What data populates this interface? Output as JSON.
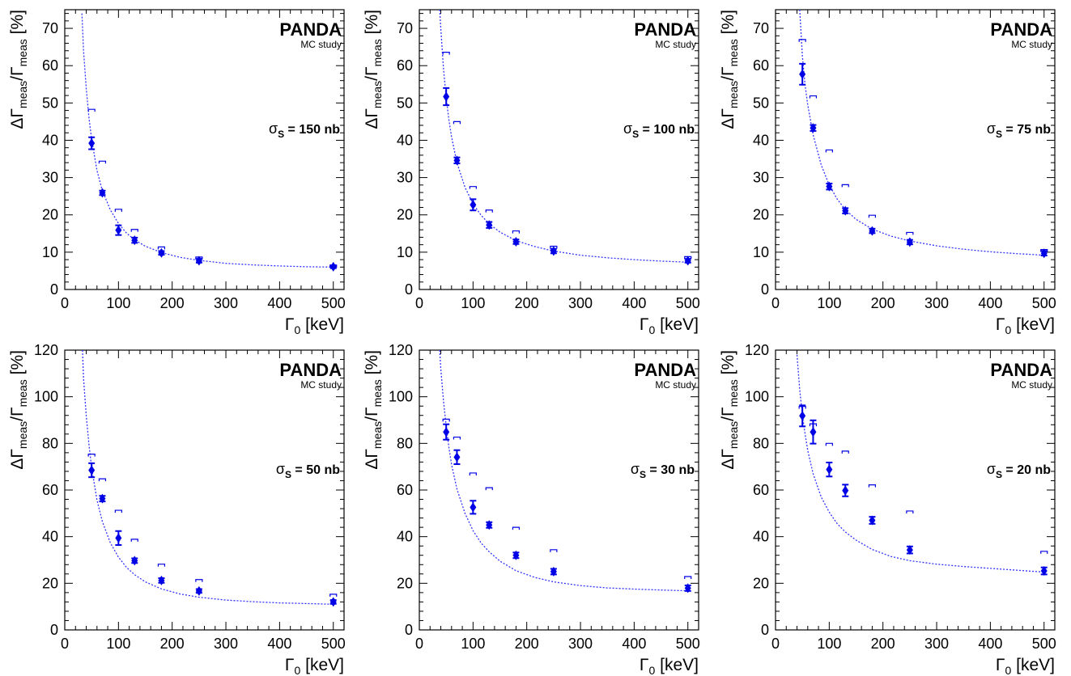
{
  "chart_data": [
    {
      "type": "scatter",
      "xlabel": "Γ0 [keV]",
      "ylabel": "ΔΓmeas/Γmeas [%]",
      "xlim": [
        0,
        520
      ],
      "ylim": [
        0,
        75
      ],
      "xticks": [
        0,
        100,
        200,
        300,
        400,
        500
      ],
      "yticks": [
        0,
        10,
        20,
        30,
        40,
        50,
        60,
        70
      ],
      "brand": "PANDA",
      "subtitle": "MC study",
      "sigma_value": "150",
      "series": [
        {
          "marker": "diamond",
          "points": [
            [
              50,
              39.2,
              1.6
            ],
            [
              70,
              25.9,
              0.6
            ],
            [
              100,
              15.9,
              1.3
            ],
            [
              130,
              13.2,
              0.7
            ],
            [
              180,
              9.8,
              0.5
            ],
            [
              250,
              7.7,
              0.5
            ],
            [
              500,
              6.1,
              0.4
            ]
          ]
        },
        {
          "marker": "bracket",
          "x": [
            50,
            70,
            100,
            130,
            180,
            250,
            500
          ],
          "y": [
            48.3,
            34.4,
            21.5,
            16.1,
            11.4,
            8.7,
            6.5
          ]
        }
      ],
      "fit_curve": {
        "x": [
          32,
          35,
          40,
          45,
          50,
          60,
          70,
          85,
          100,
          115,
          130,
          150,
          180,
          215,
          250,
          300,
          350,
          400,
          450,
          500
        ],
        "y": [
          74,
          64,
          54,
          46,
          40.3,
          31.9,
          26.5,
          21.3,
          17.7,
          15.1,
          13.3,
          11.6,
          9.9,
          8.6,
          7.8,
          7.0,
          6.6,
          6.3,
          6.1,
          6.0
        ]
      }
    },
    {
      "type": "scatter",
      "xlabel": "Γ0 [keV]",
      "ylabel": "ΔΓmeas/Γmeas [%]",
      "xlim": [
        0,
        520
      ],
      "ylim": [
        0,
        75
      ],
      "xticks": [
        0,
        100,
        200,
        300,
        400,
        500
      ],
      "yticks": [
        0,
        10,
        20,
        30,
        40,
        50,
        60,
        70
      ],
      "brand": "PANDA",
      "subtitle": "MC study",
      "sigma_value": "100",
      "series": [
        {
          "marker": "diamond",
          "points": [
            [
              50,
              51.7,
              2.3
            ],
            [
              70,
              34.6,
              0.8
            ],
            [
              100,
              22.7,
              1.5
            ],
            [
              130,
              17.3,
              0.8
            ],
            [
              180,
              12.8,
              0.6
            ],
            [
              250,
              10.3,
              0.6
            ],
            [
              500,
              7.7,
              0.5
            ]
          ]
        },
        {
          "marker": "bracket",
          "x": [
            50,
            70,
            100,
            130,
            180,
            250,
            500
          ],
          "y": [
            63.6,
            45.0,
            27.6,
            21.3,
            15.7,
            11.6,
            8.8
          ]
        }
      ],
      "fit_curve": {
        "x": [
          38,
          40,
          45,
          50,
          55,
          60,
          70,
          85,
          100,
          115,
          130,
          150,
          180,
          215,
          250,
          300,
          350,
          400,
          450,
          500
        ],
        "y": [
          75,
          70,
          59,
          51.4,
          45.5,
          40.9,
          34,
          27.4,
          23,
          19.9,
          17.6,
          15.4,
          13.1,
          11.5,
          10.3,
          9.2,
          8.5,
          8.0,
          7.6,
          7.3
        ]
      }
    },
    {
      "type": "scatter",
      "xlabel": "Γ0 [keV]",
      "ylabel": "ΔΓmeas/Γmeas [%]",
      "xlim": [
        0,
        520
      ],
      "ylim": [
        0,
        75
      ],
      "xticks": [
        0,
        100,
        200,
        300,
        400,
        500
      ],
      "yticks": [
        0,
        10,
        20,
        30,
        40,
        50,
        60,
        70
      ],
      "brand": "PANDA",
      "subtitle": "MC study",
      "sigma_value": "75",
      "series": [
        {
          "marker": "diamond",
          "points": [
            [
              50,
              57.7,
              2.8
            ],
            [
              70,
              43.3,
              0.8
            ],
            [
              100,
              27.6,
              0.8
            ],
            [
              130,
              21.1,
              0.7
            ],
            [
              180,
              15.7,
              0.6
            ],
            [
              250,
              12.7,
              0.6
            ],
            [
              500,
              9.7,
              0.6
            ]
          ]
        },
        {
          "marker": "bracket",
          "x": [
            50,
            70,
            100,
            130,
            180,
            250,
            500
          ],
          "y": [
            67.0,
            51.9,
            37.4,
            28.1,
            19.9,
            15.3,
            10.7
          ]
        }
      ],
      "fit_curve": {
        "x": [
          45,
          50,
          55,
          60,
          70,
          85,
          100,
          115,
          130,
          150,
          180,
          215,
          250,
          300,
          350,
          400,
          450,
          500
        ],
        "y": [
          75,
          62.5,
          54.8,
          49.5,
          41.5,
          33.4,
          28,
          24.2,
          21.4,
          18.8,
          16.2,
          14.3,
          13,
          11.7,
          10.8,
          10.1,
          9.6,
          9.2
        ]
      }
    },
    {
      "type": "scatter",
      "xlabel": "Γ0 [keV]",
      "ylabel": "ΔΓmeas/Γmeas [%]",
      "xlim": [
        0,
        520
      ],
      "ylim": [
        0,
        120
      ],
      "xticks": [
        0,
        100,
        200,
        300,
        400,
        500
      ],
      "yticks": [
        0,
        20,
        40,
        60,
        80,
        100,
        120
      ],
      "brand": "PANDA",
      "subtitle": "MC study",
      "sigma_value": "50",
      "series": [
        {
          "marker": "diamond",
          "points": [
            [
              50,
              68.5,
              3.0
            ],
            [
              70,
              56.3,
              1.2
            ],
            [
              100,
              39.4,
              3.0
            ],
            [
              130,
              29.7,
              1.0
            ],
            [
              180,
              21.2,
              1.0
            ],
            [
              250,
              16.7,
              0.8
            ],
            [
              500,
              12.0,
              0.8
            ]
          ]
        },
        {
          "marker": "bracket",
          "x": [
            50,
            70,
            100,
            130,
            180,
            250,
            500
          ],
          "y": [
            75.4,
            64.8,
            51.3,
            38.9,
            28.2,
            21.6,
            15.3
          ]
        }
      ],
      "fit_curve": {
        "x": [
          33,
          35,
          40,
          45,
          50,
          60,
          70,
          85,
          100,
          115,
          130,
          150,
          180,
          215,
          250,
          300,
          350,
          400,
          450,
          500
        ],
        "y": [
          120,
          108,
          92,
          79.5,
          69.5,
          55.7,
          46.5,
          37.3,
          31.2,
          26.8,
          23.7,
          20.6,
          17.6,
          15.4,
          14.0,
          12.8,
          12.1,
          11.6,
          11.3,
          11.0
        ]
      }
    },
    {
      "type": "scatter",
      "xlabel": "Γ0 [keV]",
      "ylabel": "ΔΓmeas/Γmeas [%]",
      "xlim": [
        0,
        520
      ],
      "ylim": [
        0,
        120
      ],
      "xticks": [
        0,
        100,
        200,
        300,
        400,
        500
      ],
      "yticks": [
        0,
        20,
        40,
        60,
        80,
        100,
        120
      ],
      "brand": "PANDA",
      "subtitle": "MC study",
      "sigma_value": "30",
      "series": [
        {
          "marker": "diamond",
          "points": [
            [
              50,
              84.9,
              3.3
            ],
            [
              70,
              74.1,
              3.0
            ],
            [
              100,
              52.6,
              2.8
            ],
            [
              130,
              45.0,
              1.2
            ],
            [
              180,
              32.0,
              1.2
            ],
            [
              250,
              25.0,
              1.2
            ],
            [
              500,
              17.9,
              1.2
            ]
          ]
        },
        {
          "marker": "bracket",
          "x": [
            50,
            70,
            100,
            130,
            180,
            250,
            500
          ],
          "y": [
            90.4,
            82.7,
            67.3,
            61.0,
            44.0,
            34.4,
            22.9
          ]
        }
      ],
      "fit_curve": {
        "x": [
          38,
          40,
          45,
          50,
          55,
          60,
          70,
          85,
          100,
          115,
          130,
          150,
          180,
          215,
          250,
          300,
          350,
          400,
          450,
          500
        ],
        "y": [
          120,
          112,
          98,
          87.3,
          78.3,
          71,
          60.5,
          50,
          42.6,
          37.3,
          33.5,
          29.5,
          25.4,
          22.5,
          20.6,
          19,
          18,
          17.5,
          17.1,
          16.8
        ]
      }
    },
    {
      "type": "scatter",
      "xlabel": "Γ0 [keV]",
      "ylabel": "ΔΓmeas/Γmeas [%]",
      "xlim": [
        0,
        520
      ],
      "ylim": [
        0,
        120
      ],
      "xticks": [
        0,
        100,
        200,
        300,
        400,
        500
      ],
      "yticks": [
        0,
        20,
        40,
        60,
        80,
        100,
        120
      ],
      "brand": "PANDA",
      "subtitle": "MC study",
      "sigma_value": "20",
      "series": [
        {
          "marker": "diamond",
          "points": [
            [
              50,
              91.8,
              4.5
            ],
            [
              70,
              84.9,
              5.0
            ],
            [
              100,
              68.8,
              3.0
            ],
            [
              130,
              59.8,
              2.5
            ],
            [
              180,
              47.0,
              1.5
            ],
            [
              250,
              34.3,
              1.5
            ],
            [
              500,
              25.3,
              1.5
            ]
          ]
        },
        {
          "marker": "bracket",
          "x": [
            50,
            70,
            100,
            130,
            180,
            250,
            500
          ],
          "y": [
            95.9,
            88.4,
            80.0,
            76.7,
            62.2,
            51.0,
            33.7
          ]
        }
      ],
      "fit_curve": {
        "x": [
          40,
          45,
          50,
          55,
          60,
          70,
          85,
          100,
          115,
          130,
          150,
          180,
          215,
          250,
          300,
          350,
          400,
          450,
          500
        ],
        "y": [
          118,
          103,
          92,
          84,
          77,
          67,
          57,
          50.5,
          45.5,
          42,
          38.5,
          34.5,
          31.5,
          29.7,
          28.2,
          27.2,
          26.4,
          25.6,
          24.8
        ]
      }
    }
  ],
  "colors": {
    "points": "#0000e6",
    "curve": "#3333ff",
    "axis": "#000000"
  }
}
